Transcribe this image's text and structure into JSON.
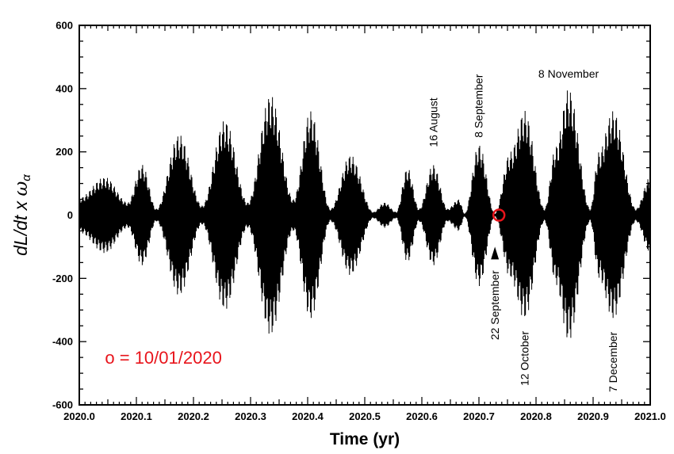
{
  "chart_data": {
    "type": "line",
    "xlabel": "Time (yr)",
    "ylabel_main": "dL/dt x ",
    "ylabel_symbol": "ω",
    "ylabel_sub": "α",
    "xlim": [
      2020.0,
      2021.0
    ],
    "ylim": [
      -600,
      600
    ],
    "x_ticks": [
      2020.0,
      2020.1,
      2020.2,
      2020.3,
      2020.4,
      2020.5,
      2020.6,
      2020.7,
      2020.8,
      2020.9,
      2021.0
    ],
    "x_tick_labels": [
      "2020.0",
      "2020.1",
      "2020.2",
      "2020.3",
      "2020.4",
      "2020.5",
      "2020.6",
      "2020.7",
      "2020.8",
      "2020.9",
      "2021.0"
    ],
    "y_ticks": [
      -600,
      -400,
      -200,
      0,
      200,
      400,
      600
    ],
    "y_tick_labels": [
      "-600",
      "-400",
      "-200",
      "0",
      "200",
      "400",
      "600"
    ],
    "envelope_peaks": [
      {
        "x": 2020.0,
        "y": 55
      },
      {
        "x": 2020.045,
        "y": 120
      },
      {
        "x": 2020.085,
        "y": 40
      },
      {
        "x": 2020.11,
        "y": 160
      },
      {
        "x": 2020.135,
        "y": 20
      },
      {
        "x": 2020.175,
        "y": 255
      },
      {
        "x": 2020.215,
        "y": 30
      },
      {
        "x": 2020.255,
        "y": 300
      },
      {
        "x": 2020.295,
        "y": 40
      },
      {
        "x": 2020.335,
        "y": 380
      },
      {
        "x": 2020.375,
        "y": 50
      },
      {
        "x": 2020.405,
        "y": 330
      },
      {
        "x": 2020.44,
        "y": 20
      },
      {
        "x": 2020.475,
        "y": 190
      },
      {
        "x": 2020.515,
        "y": 10
      },
      {
        "x": 2020.535,
        "y": 40
      },
      {
        "x": 2020.555,
        "y": 10
      },
      {
        "x": 2020.575,
        "y": 150
      },
      {
        "x": 2020.595,
        "y": 20
      },
      {
        "x": 2020.62,
        "y": 160
      },
      {
        "x": 2020.645,
        "y": 20
      },
      {
        "x": 2020.665,
        "y": 50
      },
      {
        "x": 2020.675,
        "y": 5
      },
      {
        "x": 2020.7,
        "y": 225
      },
      {
        "x": 2020.728,
        "y": 5
      },
      {
        "x": 2020.755,
        "y": 200
      },
      {
        "x": 2020.78,
        "y": 330
      },
      {
        "x": 2020.815,
        "y": 20
      },
      {
        "x": 2020.835,
        "y": 220
      },
      {
        "x": 2020.857,
        "y": 400
      },
      {
        "x": 2020.895,
        "y": 20
      },
      {
        "x": 2020.91,
        "y": 200
      },
      {
        "x": 2020.935,
        "y": 330
      },
      {
        "x": 2020.975,
        "y": 20
      },
      {
        "x": 2021.0,
        "y": 120
      }
    ],
    "marker": {
      "x": 2020.735,
      "y": 0,
      "color": "#e8141b"
    },
    "marker_label": "o = 10/01/2020",
    "annotations": [
      {
        "text": "16 August",
        "x": 2020.62,
        "y": 215,
        "rotate": true
      },
      {
        "text": "8 September",
        "x": 2020.699,
        "y": 245,
        "rotate": true
      },
      {
        "text": "8 November",
        "x": 2020.857,
        "y": 435,
        "rotate": false
      },
      {
        "text": "22 September",
        "x": 2020.728,
        "y": -395,
        "rotate": true
      },
      {
        "text": "12 October",
        "x": 2020.78,
        "y": -540,
        "rotate": true
      },
      {
        "text": "7 December",
        "x": 2020.935,
        "y": -560,
        "rotate": true
      }
    ],
    "arrow": {
      "x": 2020.728,
      "y_tip": -100,
      "y_base": -160
    },
    "grid": false,
    "colors": {
      "signal": "#000000",
      "marker": "#e8141b",
      "note": "#e8141b"
    }
  }
}
